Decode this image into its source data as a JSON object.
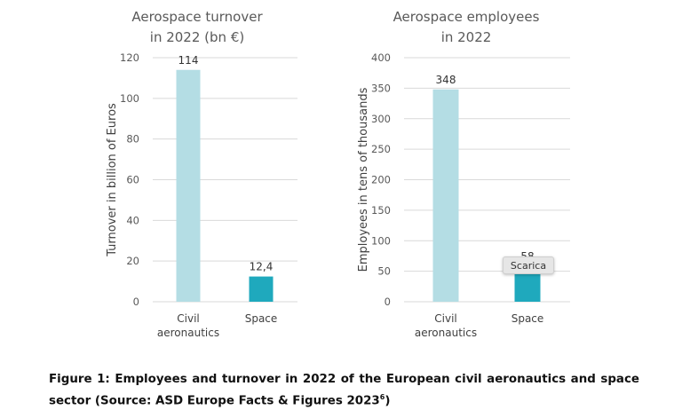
{
  "chart_data": [
    {
      "type": "bar",
      "title_lines": [
        "Aerospace turnover",
        "in 2022 (bn €)"
      ],
      "ylabel": "Turnover in billion of Euros",
      "categories": [
        [
          "Civil",
          "aeronautics"
        ],
        [
          "Space"
        ]
      ],
      "values": [
        114,
        12.4
      ],
      "value_labels": [
        "114",
        "12,4"
      ],
      "yticks": [
        0,
        20,
        40,
        60,
        80,
        100,
        120
      ],
      "ylim": [
        0,
        120
      ],
      "colors": [
        "#b4dde4",
        "#1fa9bd"
      ],
      "grid": true
    },
    {
      "type": "bar",
      "title_lines": [
        "Aerospace employees",
        "in 2022"
      ],
      "ylabel": "Employees in tens of thousands",
      "categories": [
        [
          "Civil",
          "aeronautics"
        ],
        [
          "Space"
        ]
      ],
      "values": [
        348,
        58
      ],
      "value_labels": [
        "348",
        "58"
      ],
      "yticks": [
        0,
        50,
        100,
        150,
        200,
        250,
        300,
        350,
        400
      ],
      "ylim": [
        0,
        400
      ],
      "colors": [
        "#b4dde4",
        "#1fa9bd"
      ],
      "grid": true
    }
  ],
  "tooltip": {
    "text": "Scarica"
  },
  "caption": {
    "text": "Figure 1: Employees and turnover in 2022 of the European civil aeronautics and space sector (Source: ASD Europe Facts & Figures 2023",
    "footnote": "6",
    "closing": ")"
  }
}
